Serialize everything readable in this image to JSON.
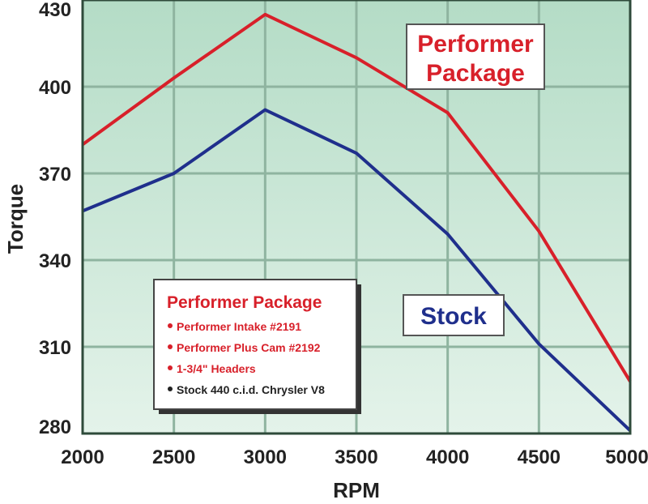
{
  "chart_data": {
    "type": "line",
    "xlabel": "RPM",
    "ylabel": "Torque",
    "x": [
      2000,
      2500,
      3000,
      3500,
      4000,
      4500,
      5000
    ],
    "xticks": [
      "2000",
      "2500",
      "3000",
      "3500",
      "4000",
      "4500",
      "5000"
    ],
    "yticks": [
      "430",
      "400",
      "370",
      "340",
      "310",
      "280"
    ],
    "ytick_values": [
      430,
      400,
      370,
      340,
      310,
      280
    ],
    "xlim": [
      2000,
      5000
    ],
    "ylim": [
      280,
      430
    ],
    "grid": true,
    "series": [
      {
        "name": "Performer Package",
        "color": "#d8202a",
        "values": [
          380,
          403,
          425,
          410,
          391,
          350,
          298
        ]
      },
      {
        "name": "Stock",
        "color": "#1f2f8c",
        "values": [
          357,
          370,
          392,
          377,
          349,
          311,
          281
        ]
      }
    ],
    "annotations": {
      "performer_line1": "Performer",
      "performer_line2": "Package",
      "stock": "Stock"
    },
    "legend_box": {
      "title": "Performer Package",
      "items": [
        {
          "text": "Performer Intake #2191",
          "color": "#d8202a"
        },
        {
          "text": "Performer Plus Cam #2192",
          "color": "#d8202a"
        },
        {
          "text": "1-3/4\" Headers",
          "color": "#d8202a"
        },
        {
          "text": "Stock 440 c.i.d. Chrysler V8",
          "color": "#222222"
        }
      ]
    },
    "colors": {
      "plot_bg_top": "#b4dcc6",
      "plot_bg_bottom": "#e4f3ea",
      "grid": "#8fb4a0"
    }
  }
}
